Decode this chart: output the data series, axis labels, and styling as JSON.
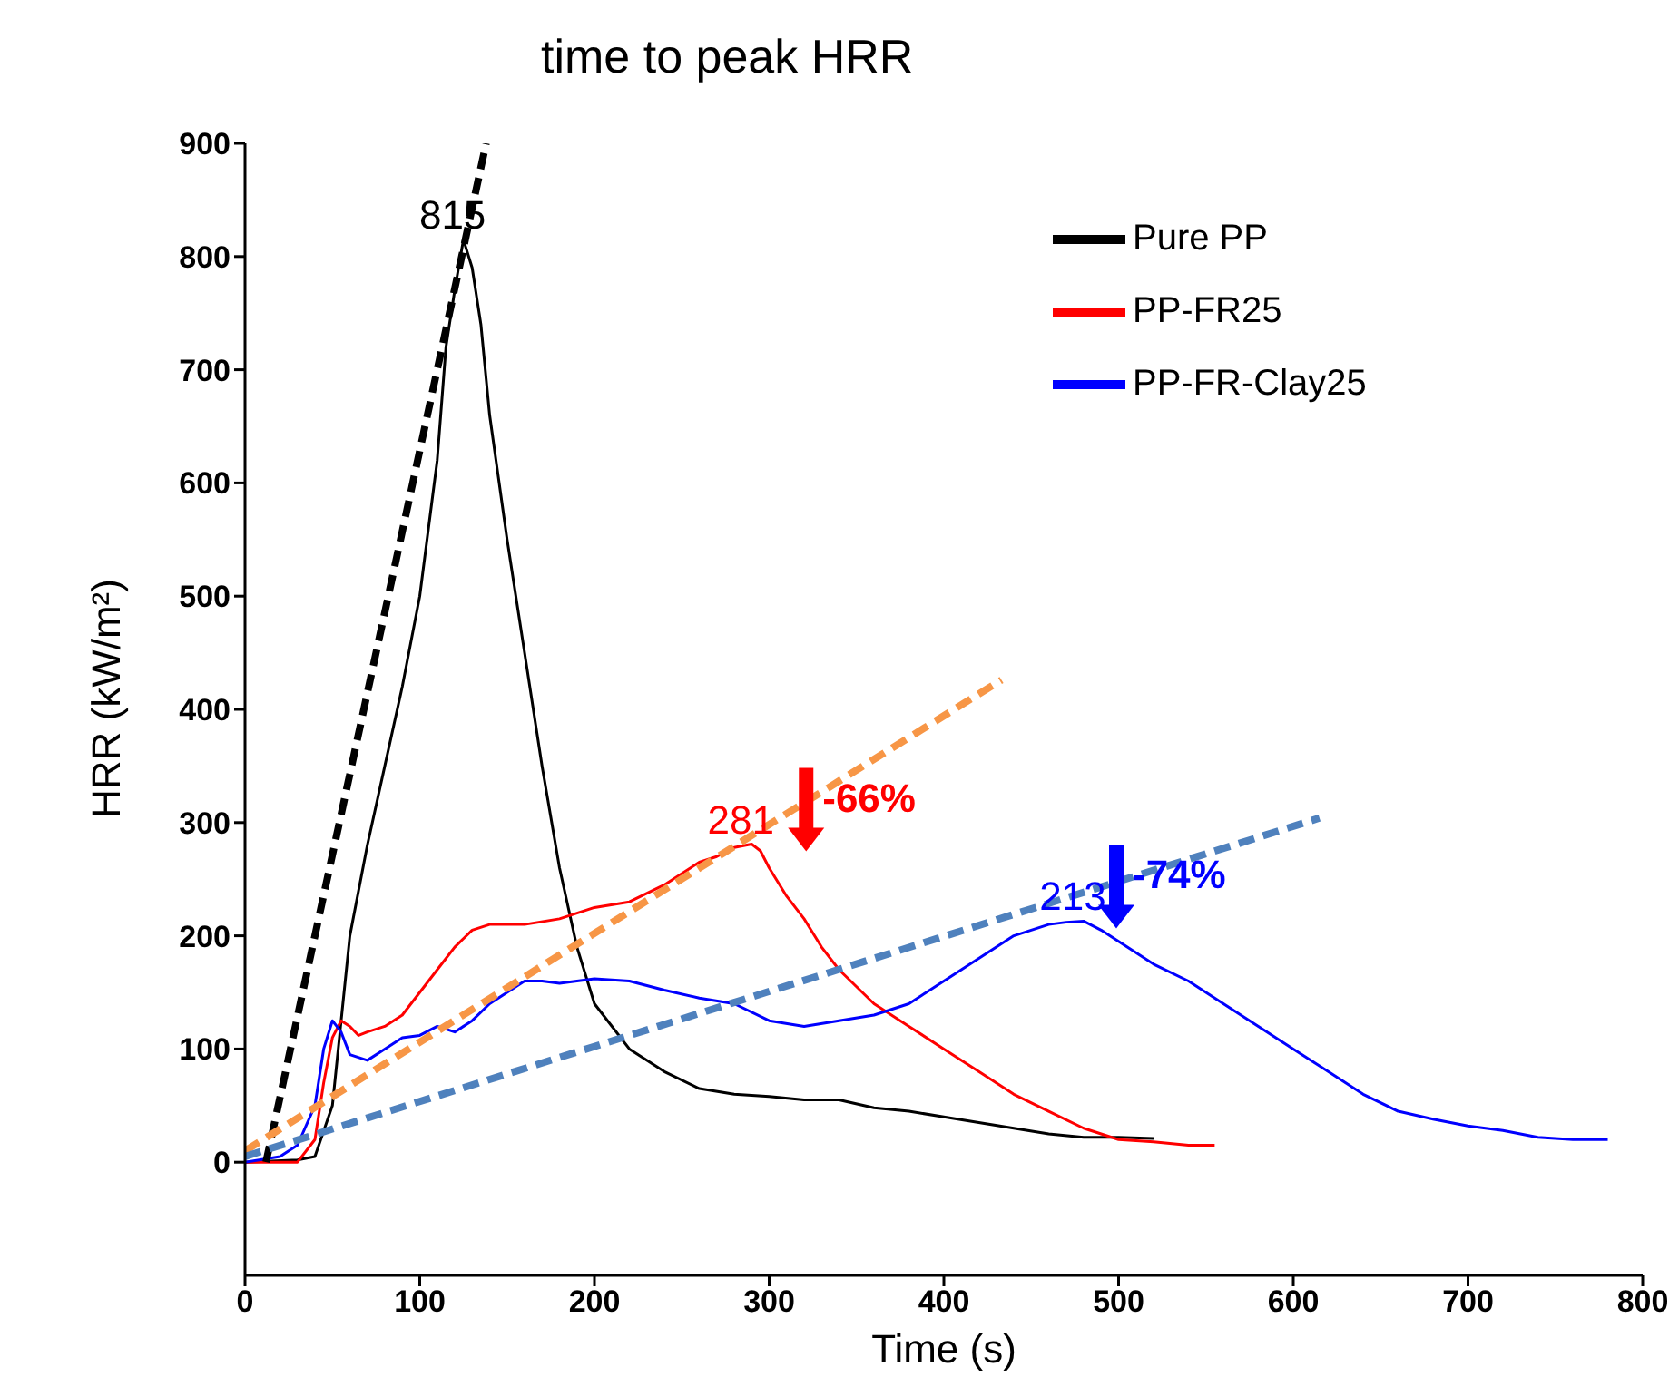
{
  "chart_data": {
    "type": "line",
    "xlabel": "Time (s)",
    "ylabel": "HRR (kW/m²)",
    "xlim": [
      0,
      800
    ],
    "xticks": [
      0,
      100,
      200,
      300,
      400,
      500,
      600,
      700,
      800
    ],
    "ylim": [
      -100,
      900
    ],
    "yticks": [
      0,
      100,
      200,
      300,
      400,
      500,
      600,
      700,
      800,
      900
    ],
    "legend": "top right",
    "grid": false,
    "marker": "none",
    "line_style": "solid",
    "series": [
      {
        "name": "Pure PP",
        "color": "#000000",
        "x": [
          0,
          30,
          40,
          50,
          60,
          70,
          80,
          90,
          100,
          110,
          115,
          120,
          125,
          130,
          135,
          140,
          150,
          160,
          170,
          180,
          190,
          200,
          220,
          240,
          260,
          280,
          300,
          320,
          340,
          360,
          380,
          400,
          420,
          440,
          460,
          480,
          500,
          520
        ],
        "values": [
          0,
          2,
          5,
          50,
          200,
          280,
          350,
          420,
          500,
          620,
          720,
          770,
          815,
          790,
          740,
          660,
          550,
          450,
          350,
          260,
          190,
          140,
          100,
          80,
          65,
          60,
          58,
          55,
          55,
          48,
          45,
          40,
          35,
          30,
          25,
          22,
          22,
          21
        ]
      },
      {
        "name": "PP-FR25",
        "color": "#ff0000",
        "x": [
          0,
          30,
          40,
          45,
          50,
          55,
          60,
          65,
          70,
          80,
          90,
          100,
          110,
          120,
          130,
          140,
          160,
          180,
          200,
          220,
          240,
          260,
          270,
          280,
          290,
          295,
          300,
          310,
          320,
          330,
          340,
          350,
          360,
          380,
          400,
          420,
          440,
          460,
          480,
          500,
          520,
          540,
          555
        ],
        "values": [
          0,
          0,
          20,
          70,
          110,
          125,
          120,
          112,
          115,
          120,
          130,
          150,
          170,
          190,
          205,
          210,
          210,
          215,
          225,
          230,
          245,
          265,
          270,
          278,
          281,
          275,
          260,
          235,
          215,
          190,
          170,
          155,
          140,
          120,
          100,
          80,
          60,
          45,
          30,
          20,
          18,
          15,
          15
        ]
      },
      {
        "name": "PP-FR-Clay25",
        "color": "#0000ff",
        "x": [
          0,
          20,
          30,
          40,
          45,
          50,
          55,
          60,
          70,
          80,
          90,
          100,
          110,
          120,
          130,
          140,
          150,
          160,
          170,
          180,
          200,
          220,
          240,
          260,
          280,
          300,
          320,
          340,
          360,
          380,
          400,
          420,
          440,
          460,
          470,
          480,
          490,
          500,
          520,
          540,
          560,
          580,
          600,
          620,
          640,
          660,
          680,
          700,
          720,
          740,
          760,
          780
        ],
        "values": [
          0,
          5,
          15,
          50,
          100,
          125,
          115,
          95,
          90,
          100,
          110,
          112,
          120,
          115,
          125,
          140,
          150,
          160,
          160,
          158,
          162,
          160,
          152,
          145,
          140,
          125,
          120,
          125,
          130,
          140,
          160,
          180,
          200,
          210,
          212,
          213,
          205,
          195,
          175,
          160,
          140,
          120,
          100,
          80,
          60,
          45,
          38,
          32,
          28,
          22,
          20,
          20
        ]
      },
      {
        "type": "line",
        "color": "#000000",
        "line_style": "dashed",
        "x": [
          12,
          138
        ],
        "values": [
          0,
          900
        ]
      },
      {
        "type": "line",
        "color": "#f79646",
        "line_style": "dashed",
        "x": [
          0,
          433
        ],
        "values": [
          10,
          426
        ]
      },
      {
        "type": "line",
        "color": "#4f81bd",
        "line_style": "dashed",
        "x": [
          0,
          615
        ],
        "values": [
          5,
          304
        ]
      }
    ],
    "annotations": [
      "time to peak HRR",
      {
        "text": "815",
        "x": 125,
        "y": 815
      },
      {
        "text": "281",
        "x": 290,
        "y": 281
      },
      {
        "text": "213",
        "x": 480,
        "y": 213
      },
      "-66%",
      "-74%"
    ]
  }
}
